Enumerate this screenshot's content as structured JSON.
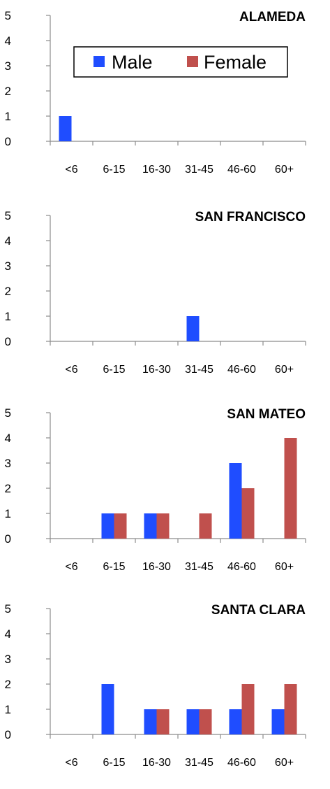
{
  "colors": {
    "male": "#1f4dff",
    "female": "#c0504d",
    "axis": "#8c8c8c"
  },
  "legend": {
    "male": "Male",
    "female": "Female"
  },
  "chart_data": [
    {
      "type": "bar",
      "title": "ALAMEDA",
      "categories": [
        "<6",
        "6-15",
        "16-30",
        "31-45",
        "46-60",
        "60+"
      ],
      "series": [
        {
          "name": "Male",
          "values": [
            1,
            0,
            0,
            0,
            0,
            0
          ]
        },
        {
          "name": "Female",
          "values": [
            0,
            0,
            0,
            0,
            0,
            0
          ]
        }
      ],
      "ylim": [
        0,
        5
      ],
      "yticks": [
        0,
        1,
        2,
        3,
        4,
        5
      ],
      "legend_position": "top-right"
    },
    {
      "type": "bar",
      "title": "SAN FRANCISCO",
      "categories": [
        "<6",
        "6-15",
        "16-30",
        "31-45",
        "46-60",
        "60+"
      ],
      "series": [
        {
          "name": "Male",
          "values": [
            0,
            0,
            0,
            1,
            0,
            0
          ]
        },
        {
          "name": "Female",
          "values": [
            0,
            0,
            0,
            0,
            0,
            0
          ]
        }
      ],
      "ylim": [
        0,
        5
      ],
      "yticks": [
        0,
        1,
        2,
        3,
        4,
        5
      ]
    },
    {
      "type": "bar",
      "title": "SAN MATEO",
      "categories": [
        "<6",
        "6-15",
        "16-30",
        "31-45",
        "46-60",
        "60+"
      ],
      "series": [
        {
          "name": "Male",
          "values": [
            0,
            1,
            1,
            0,
            3,
            0
          ]
        },
        {
          "name": "Female",
          "values": [
            0,
            1,
            1,
            1,
            2,
            4
          ]
        }
      ],
      "ylim": [
        0,
        5
      ],
      "yticks": [
        0,
        1,
        2,
        3,
        4,
        5
      ]
    },
    {
      "type": "bar",
      "title": "SANTA CLARA",
      "categories": [
        "<6",
        "6-15",
        "16-30",
        "31-45",
        "46-60",
        "60+"
      ],
      "series": [
        {
          "name": "Male",
          "values": [
            0,
            2,
            1,
            1,
            1,
            1
          ]
        },
        {
          "name": "Female",
          "values": [
            0,
            0,
            1,
            1,
            2,
            2
          ]
        }
      ],
      "ylim": [
        0,
        5
      ],
      "yticks": [
        0,
        1,
        2,
        3,
        4,
        5
      ]
    }
  ]
}
